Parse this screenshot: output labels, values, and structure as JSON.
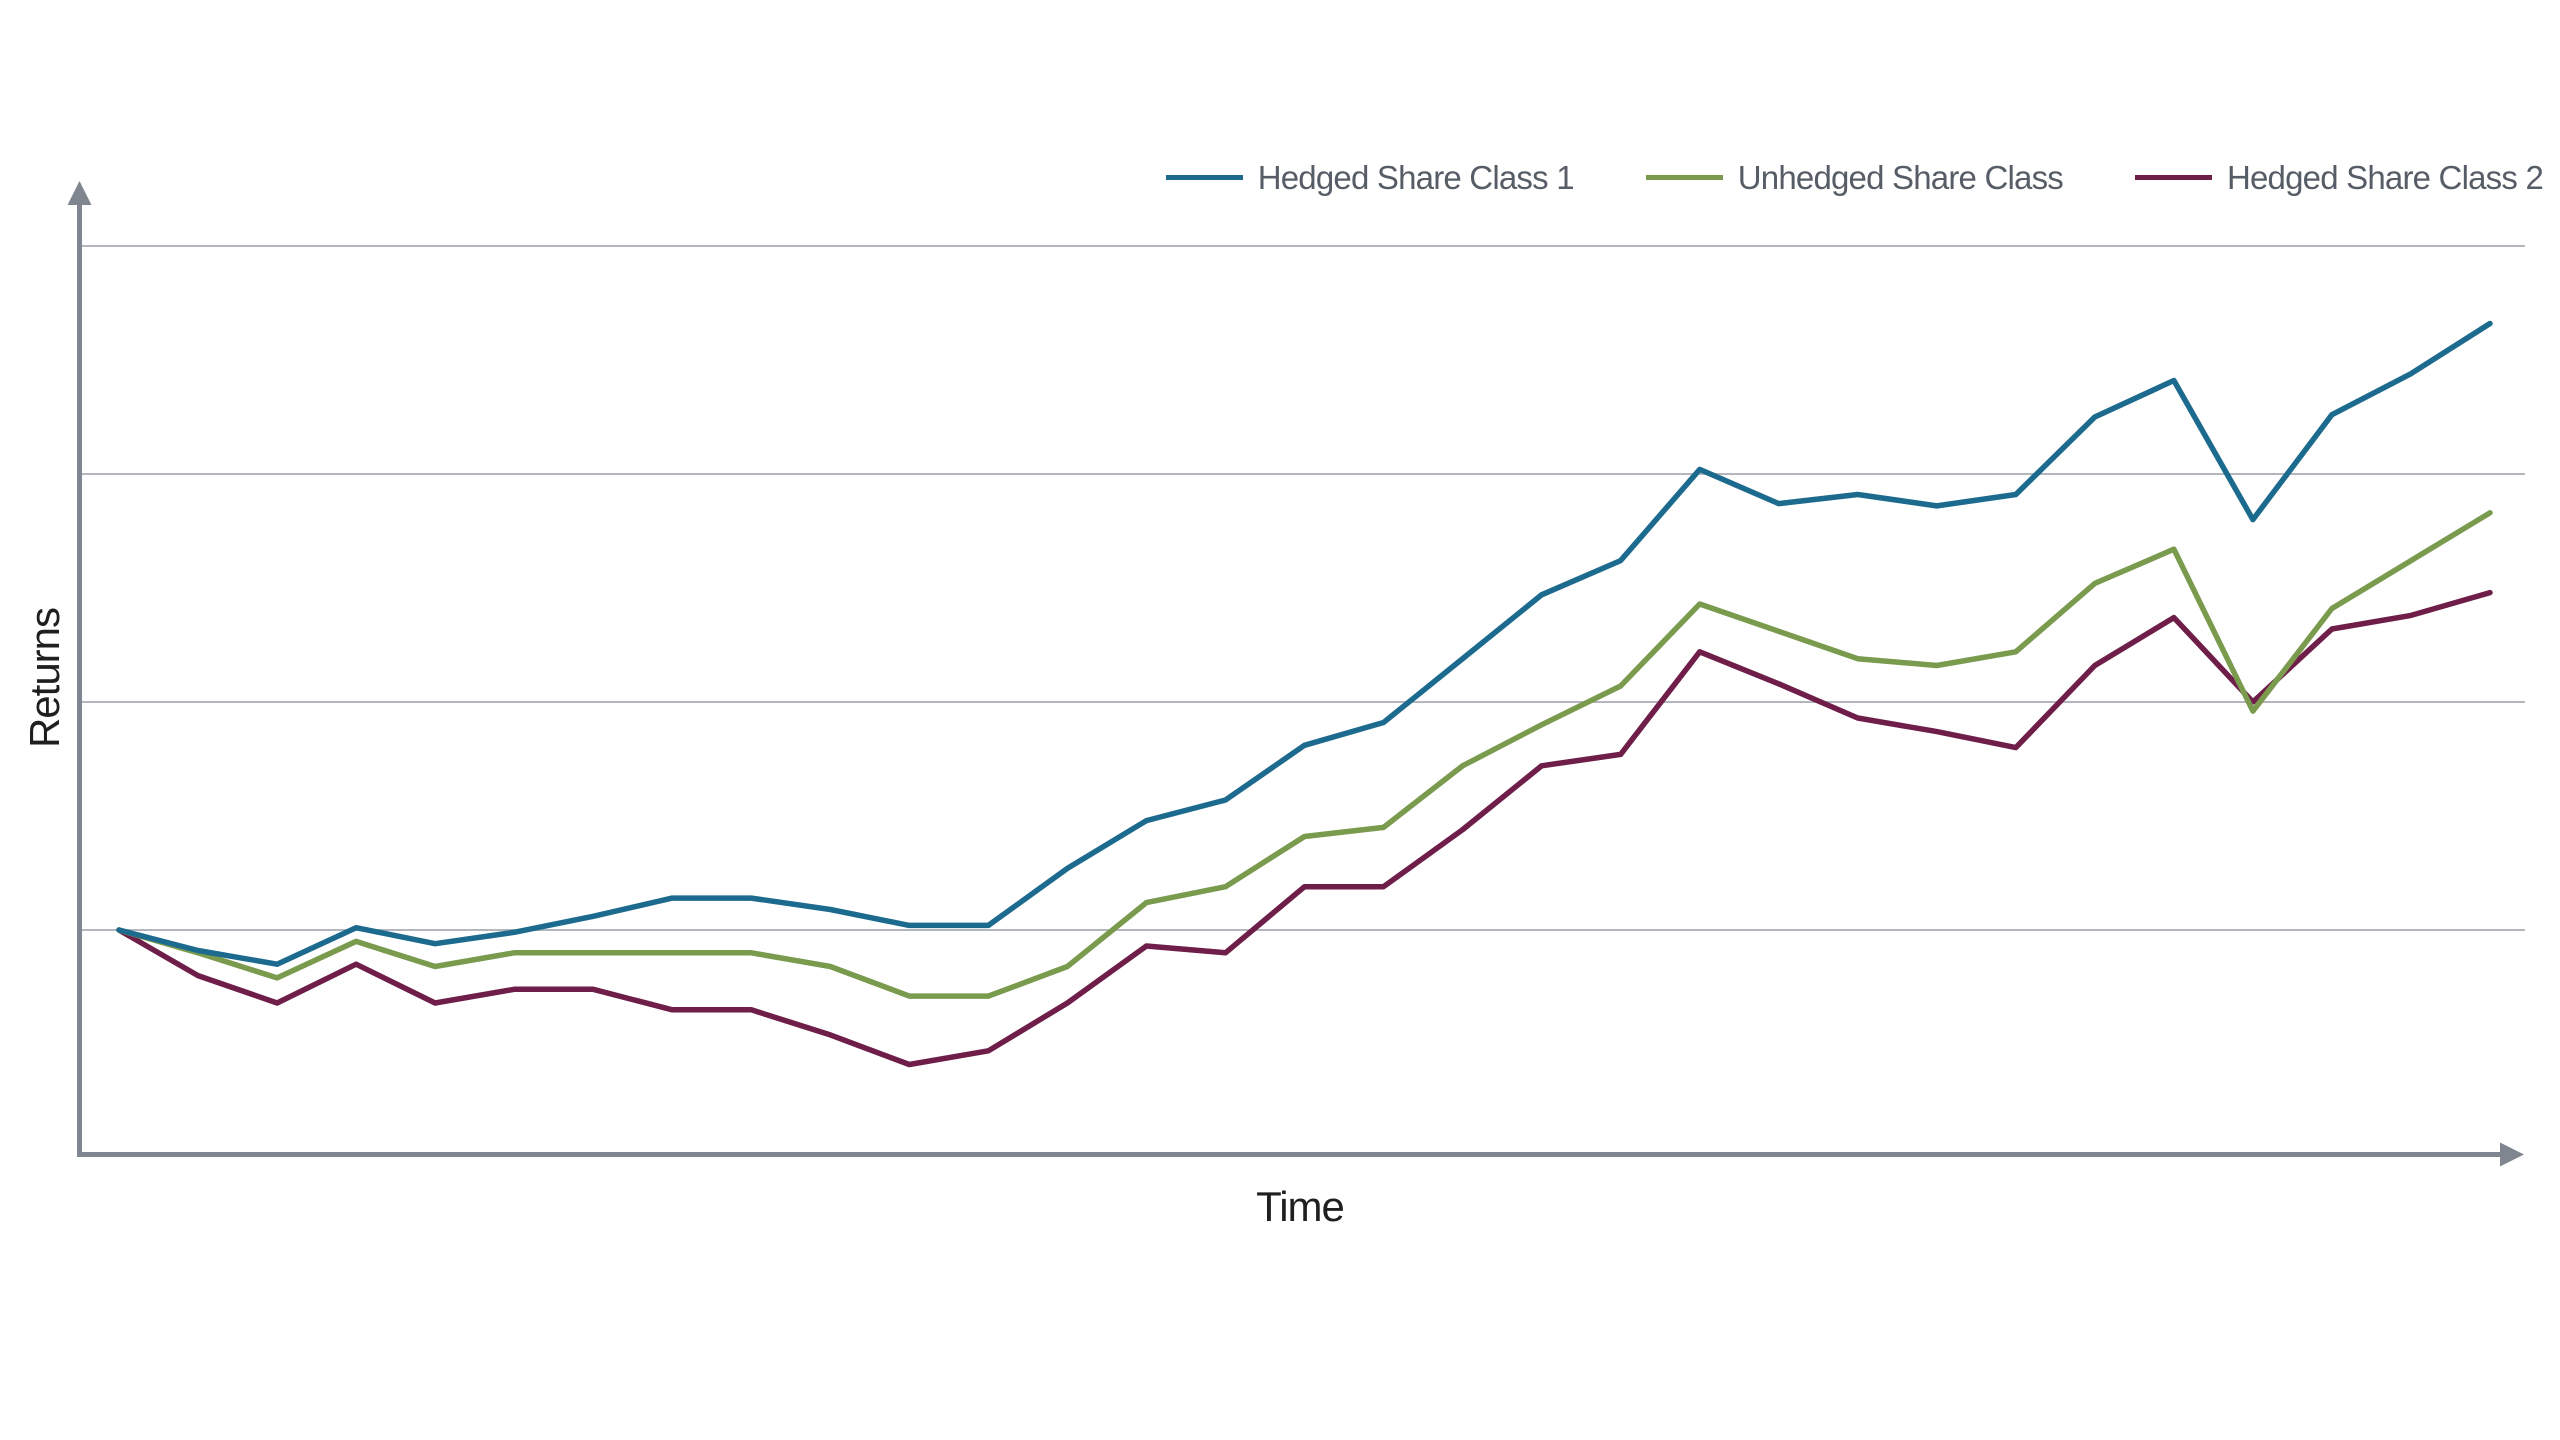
{
  "chart_data": {
    "type": "line",
    "title": "",
    "xlabel": "Time",
    "ylabel": "Returns",
    "x": {
      "description": "time steps, unlabeled axis with right arrow",
      "range": [
        0,
        30
      ],
      "tick_labels_visible": false
    },
    "y": {
      "description": "returns, unlabeled axis with up arrow; values in gridline units (baseline = 0, one gridline = 1 unit)",
      "ylim": [
        -1.0,
        3.3
      ],
      "gridlines_at": [
        0,
        1,
        2,
        3
      ],
      "tick_labels_visible": false
    },
    "grid": "horizontal gridlines only",
    "legend_position": "top-right",
    "series": [
      {
        "name": "Hedged Share Class 1",
        "color": "#1d6a8f",
        "values": [
          0,
          -0.09,
          -0.15,
          0.01,
          -0.06,
          -0.01,
          0.06,
          0.14,
          0.14,
          0.09,
          0.02,
          0.02,
          0.27,
          0.48,
          0.57,
          0.81,
          0.91,
          1.19,
          1.47,
          1.62,
          2.02,
          1.87,
          1.91,
          1.86,
          1.91,
          2.25,
          2.41,
          1.8,
          2.26,
          2.44,
          2.66
        ]
      },
      {
        "name": "Unhedged Share Class",
        "color": "#7a9b4e",
        "values": [
          0,
          -0.1,
          -0.21,
          -0.05,
          -0.16,
          -0.1,
          -0.1,
          -0.1,
          -0.1,
          -0.16,
          -0.29,
          -0.29,
          -0.16,
          0.12,
          0.19,
          0.41,
          0.45,
          0.72,
          0.9,
          1.07,
          1.43,
          1.31,
          1.19,
          1.16,
          1.22,
          1.52,
          1.67,
          0.96,
          1.41,
          1.62,
          1.83
        ]
      },
      {
        "name": "Hedged Share Class 2",
        "color": "#6e1e48",
        "values": [
          0,
          -0.2,
          -0.32,
          -0.15,
          -0.32,
          -0.26,
          -0.26,
          -0.35,
          -0.35,
          -0.46,
          -0.59,
          -0.53,
          -0.32,
          -0.07,
          -0.1,
          0.19,
          0.19,
          0.44,
          0.72,
          0.77,
          1.22,
          1.08,
          0.93,
          0.87,
          0.8,
          1.16,
          1.37,
          1.0,
          1.32,
          1.38,
          1.48
        ]
      }
    ],
    "annotations": []
  },
  "axes": {
    "y_label": "Returns",
    "x_label": "Time"
  },
  "style_colors": {
    "axis": "#7f8690",
    "gridline": "#b3b7bd",
    "legend_text": "#565d66",
    "axis_label_text": "#1f1f1f",
    "background": "#ffffff"
  }
}
